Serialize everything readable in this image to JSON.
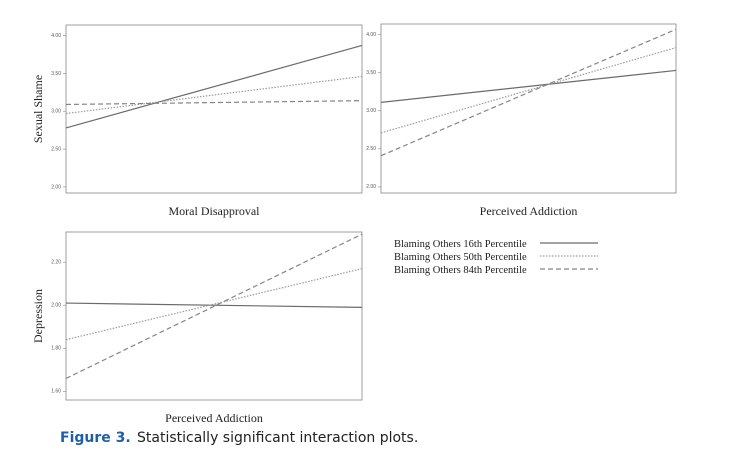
{
  "chart_data": [
    {
      "type": "line",
      "ylabel": "Sexual Shame",
      "xlabel": "Moral Disapproval",
      "x": [
        null,
        null
      ],
      "ylim": [
        1.92,
        4.14
      ],
      "yticks": [
        {
          "value": 2,
          "label": "2.00"
        },
        {
          "value": 2.5,
          "label": "2.50"
        },
        {
          "value": 3,
          "label": "3.00"
        },
        {
          "value": 3.5,
          "label": "3.50"
        },
        {
          "value": 4,
          "label": "4.00"
        }
      ],
      "series": [
        {
          "name": "Blaming Others 16th Percentile",
          "color": "#6a6a6a",
          "dash": "solid",
          "values": [
            2.78,
            3.87
          ]
        },
        {
          "name": "Blaming Others 50th Percentile",
          "color": "#9a9a9a",
          "dash": "dotted",
          "values": [
            2.97,
            3.46
          ]
        },
        {
          "name": "Blaming Others 84th Percentile",
          "color": "#858585",
          "dash": "dashed",
          "values": [
            3.09,
            3.14
          ]
        }
      ]
    },
    {
      "type": "line",
      "xlabel": "Perceived Addiction",
      "x": [
        null,
        null
      ],
      "ylim": [
        1.92,
        4.14
      ],
      "yticks": [
        {
          "value": 2,
          "label": "2.00"
        },
        {
          "value": 2.5,
          "label": "2.50"
        },
        {
          "value": 3,
          "label": "3.00"
        },
        {
          "value": 3.5,
          "label": "3.50"
        },
        {
          "value": 4,
          "label": "4.00"
        }
      ],
      "series": [
        {
          "color": "#6a6a6a",
          "dash": "solid",
          "values": [
            3.11,
            3.53
          ]
        },
        {
          "color": "#9a9a9a",
          "dash": "dotted",
          "values": [
            2.71,
            3.83
          ]
        },
        {
          "color": "#858585",
          "dash": "dashed",
          "values": [
            2.41,
            4.07
          ]
        }
      ]
    },
    {
      "type": "line",
      "ylabel": "Depression",
      "xlabel": "Perceived Addiction",
      "x": [
        null,
        null
      ],
      "ylim": [
        1.56,
        2.34
      ],
      "yticks": [
        {
          "value": 1.6,
          "label": "1.60"
        },
        {
          "value": 1.8,
          "label": "1.80"
        },
        {
          "value": 2,
          "label": "2.00"
        },
        {
          "value": 2.2,
          "label": "2.20"
        }
      ],
      "series": [
        {
          "color": "#6a6a6a",
          "dash": "solid",
          "values": [
            2.01,
            1.99
          ]
        },
        {
          "color": "#9a9a9a",
          "dash": "dotted",
          "values": [
            1.84,
            2.17
          ]
        },
        {
          "color": "#858585",
          "dash": "dashed",
          "values": [
            1.66,
            2.33
          ]
        }
      ]
    }
  ],
  "caption": {
    "label": "Figure 3.",
    "text": "Statistically significant interaction plots."
  }
}
